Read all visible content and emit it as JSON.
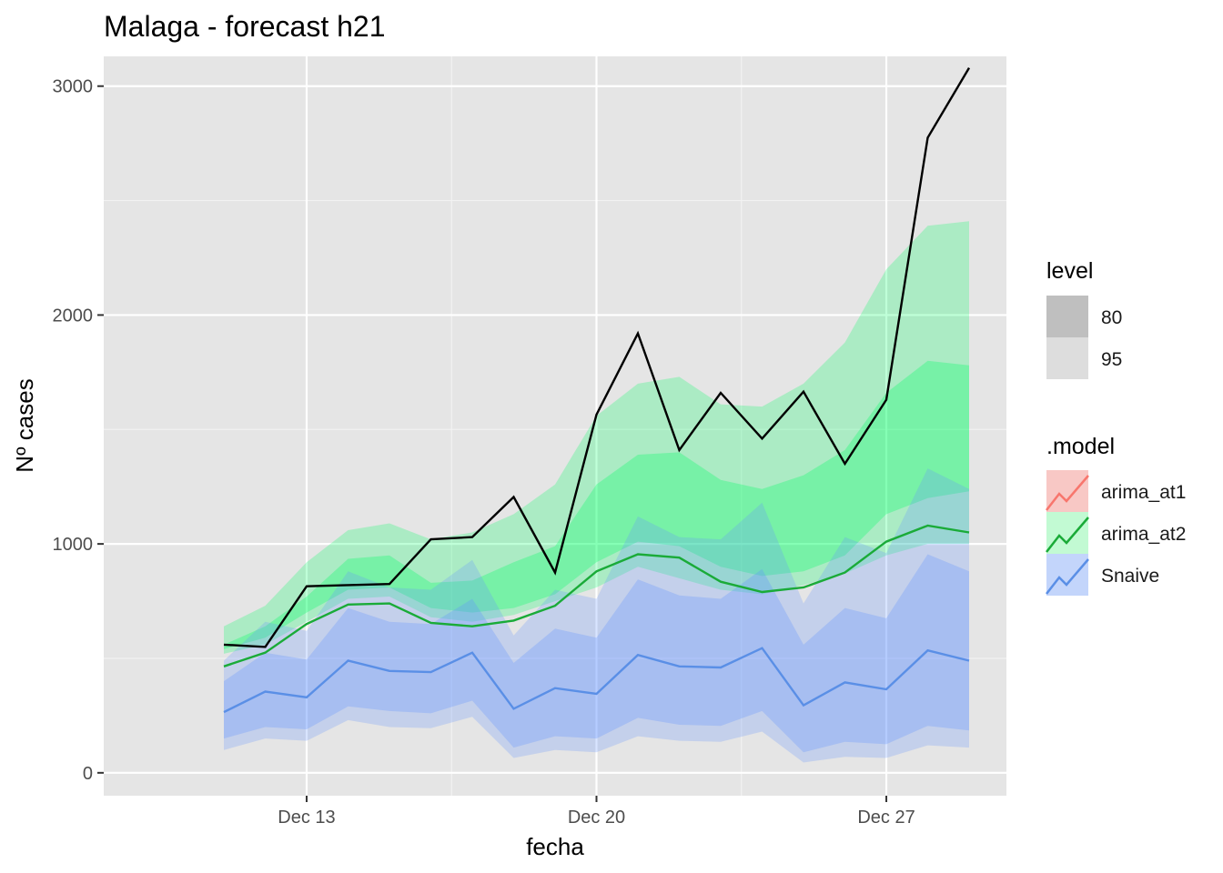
{
  "chart_data": {
    "type": "line",
    "title": "Malaga - forecast h21",
    "xlabel": "fecha",
    "ylabel": "Nº cases",
    "x": [
      "2020-12-09",
      "2020-12-10",
      "2020-12-11",
      "2020-12-12",
      "2020-12-13",
      "2020-12-14",
      "2020-12-15",
      "2020-12-16",
      "2020-12-17",
      "2020-12-18",
      "2020-12-19",
      "2020-12-20",
      "2020-12-21",
      "2020-12-22",
      "2020-12-23",
      "2020-12-24",
      "2020-12-25",
      "2020-12-26",
      "2020-12-27",
      "2020-12-28",
      "2020-12-29"
    ],
    "x_ticks": [
      "Dec 13",
      "Dec 20",
      "Dec 27"
    ],
    "ylim": [
      -100,
      3130
    ],
    "y_ticks": [
      0,
      1000,
      2000,
      3000
    ],
    "grid": true,
    "legend_position": "right",
    "actual": [
      560,
      550,
      815,
      820,
      825,
      1020,
      1030,
      1205,
      875,
      1565,
      1920,
      1410,
      1660,
      1460,
      1665,
      1350,
      1630,
      2775,
      3080
    ],
    "actual_x_start": 2,
    "series": [
      {
        "name": "arima_at2",
        "color": "#1aab38",
        "fill": "#00ff64",
        "mean": [
          465,
          525,
          650,
          735,
          740,
          655,
          640,
          665,
          730,
          880,
          955,
          940,
          835,
          790,
          810,
          875,
          1010,
          1080,
          1050
        ],
        "lo80": [
          540,
          590,
          700,
          800,
          810,
          720,
          700,
          720,
          780,
          920,
          1010,
          990,
          900,
          860,
          880,
          950,
          1130,
          1200,
          1230
        ],
        "hi80": [
          560,
          640,
          770,
          935,
          950,
          830,
          840,
          920,
          990,
          1260,
          1390,
          1400,
          1280,
          1240,
          1300,
          1410,
          1660,
          1800,
          1780
        ],
        "lo95": [
          520,
          560,
          660,
          760,
          770,
          680,
          660,
          690,
          750,
          810,
          900,
          850,
          800,
          780,
          820,
          870,
          950,
          1000,
          1000
        ],
        "hi95": [
          640,
          730,
          920,
          1060,
          1090,
          1020,
          1050,
          1130,
          1260,
          1560,
          1700,
          1730,
          1610,
          1600,
          1700,
          1880,
          2200,
          2390,
          2410
        ]
      },
      {
        "name": "Snaive",
        "color": "#5a8fe6",
        "fill": "#6495ff",
        "mean": [
          265,
          355,
          330,
          490,
          445,
          440,
          525,
          280,
          370,
          345,
          515,
          465,
          460,
          545,
          295,
          395,
          365,
          535,
          490
        ],
        "lo80": [
          150,
          200,
          190,
          290,
          270,
          260,
          315,
          110,
          160,
          150,
          240,
          210,
          205,
          270,
          90,
          135,
          125,
          205,
          185
        ],
        "hi80": [
          400,
          525,
          495,
          720,
          660,
          650,
          760,
          480,
          630,
          590,
          845,
          775,
          760,
          890,
          560,
          720,
          675,
          955,
          880
        ],
        "lo95": [
          100,
          150,
          140,
          230,
          200,
          195,
          245,
          65,
          100,
          90,
          160,
          140,
          135,
          180,
          45,
          70,
          65,
          120,
          110
        ],
        "hi95": [
          490,
          660,
          620,
          880,
          810,
          800,
          930,
          600,
          800,
          760,
          1120,
          1030,
          1020,
          1180,
          740,
          1030,
          960,
          1330,
          1240
        ]
      },
      {
        "name": "arima_at1",
        "color": "#f8766d",
        "fill": "#f8766d"
      }
    ],
    "legend": {
      "level_title": "level",
      "levels": [
        "80",
        "95"
      ],
      "model_title": ".model",
      "models": [
        "arima_at1",
        "arima_at2",
        "Snaive"
      ]
    }
  }
}
